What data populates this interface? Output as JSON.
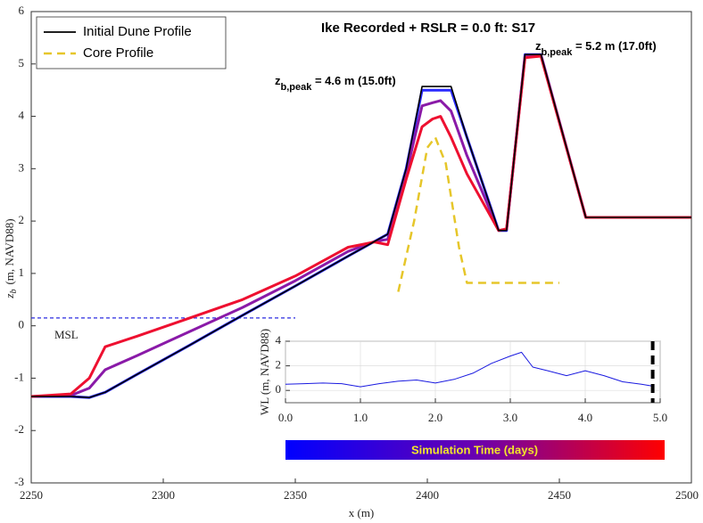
{
  "chart_data": [
    {
      "type": "line",
      "title": "Ike Recorded + RSLR = 0.0 ft: S17",
      "xlabel": "x (m)",
      "ylabel": {
        "base": "z",
        "sub": "b",
        "rest": "(m, NAVD88)"
      },
      "xlim": [
        2250,
        2500
      ],
      "xticks": [
        2250,
        2300,
        2350,
        2400,
        2450,
        2500
      ],
      "ylim": [
        -3,
        6
      ],
      "yticks": [
        -3,
        -2,
        -1,
        0,
        1,
        2,
        3,
        4,
        5,
        6
      ],
      "grid": false,
      "legend": "upper left",
      "x": [
        2250,
        2265,
        2272,
        2278,
        2290,
        2310,
        2330,
        2350,
        2370,
        2380,
        2385,
        2392,
        2398,
        2402,
        2405,
        2409,
        2415,
        2427,
        2430,
        2437,
        2443,
        2460,
        2500
      ],
      "series": [
        {
          "color": "#2a2aff",
          "width": 3,
          "values": [
            -1.35,
            -1.35,
            -1.37,
            -1.27,
            -0.93,
            -0.37,
            0.2,
            0.76,
            1.33,
            1.61,
            1.75,
            3.0,
            4.5,
            4.5,
            4.5,
            4.5,
            3.6,
            1.82,
            1.82,
            5.18,
            5.18,
            2.07,
            2.07
          ]
        },
        {
          "color": "#8a1aa8",
          "width": 3,
          "values": [
            -1.35,
            -1.33,
            -1.19,
            -0.84,
            -0.57,
            -0.11,
            0.35,
            0.86,
            1.42,
            1.61,
            1.65,
            2.9,
            4.2,
            4.26,
            4.3,
            4.1,
            3.25,
            1.82,
            1.84,
            5.15,
            5.17,
            2.07,
            2.07
          ]
        },
        {
          "color": "#ee1030",
          "width": 3,
          "values": [
            -1.35,
            -1.3,
            -1.0,
            -0.4,
            -0.2,
            0.15,
            0.5,
            0.95,
            1.5,
            1.6,
            1.55,
            2.8,
            3.8,
            3.95,
            4.0,
            3.6,
            2.9,
            1.82,
            1.85,
            5.12,
            5.15,
            2.07,
            2.07
          ]
        },
        {
          "name": "Initial Dune Profile",
          "color": "#000000",
          "width": 1.6,
          "values": [
            -1.35,
            -1.35,
            -1.37,
            -1.27,
            -0.93,
            -0.37,
            0.2,
            0.76,
            1.33,
            1.61,
            1.75,
            3.0,
            4.57,
            4.57,
            4.57,
            4.57,
            3.6,
            1.82,
            1.82,
            5.18,
            5.18,
            2.07,
            2.07
          ]
        },
        {
          "name": "Core Profile",
          "color": "#e6c62a",
          "width": 2.5,
          "dashed": true,
          "x": [
            2389,
            2395,
            2400,
            2403,
            2407,
            2412,
            2415,
            2450
          ],
          "values": [
            0.65,
            2.0,
            3.4,
            3.6,
            3.1,
            1.5,
            0.82,
            0.82
          ]
        }
      ],
      "msl": {
        "label": "MSL",
        "value": 0.15,
        "x": [
          2250,
          2350
        ],
        "color": "#2a2ae0"
      },
      "annotations": [
        {
          "base": "z",
          "sub": "b,peak",
          "rest": " = 4.6 m (15.0ft)"
        },
        {
          "base": "z",
          "sub": "b,peak",
          "rest": " = 5.2 m (17.0ft)"
        }
      ],
      "colorbar": {
        "label": "Simulation Time (days)",
        "colors": [
          "#0000ff",
          "#6a00b0",
          "#ff0000"
        ],
        "label_color": "#f2e62a"
      }
    },
    {
      "type": "line",
      "ylabel": "WL (m, NAVD88)",
      "xlim": [
        0,
        5
      ],
      "xticks": [
        {
          "value": 0,
          "label": "0.0"
        },
        {
          "value": 1,
          "label": "1.0"
        },
        {
          "value": 2,
          "label": "2.0"
        },
        {
          "value": 3,
          "label": "3.0"
        },
        {
          "value": 4,
          "label": "4.0"
        },
        {
          "value": 5,
          "label": "5.0"
        }
      ],
      "ylim": [
        -1,
        4
      ],
      "yticks": [
        0,
        2,
        4
      ],
      "grid": true,
      "x": [
        0,
        0.25,
        0.5,
        0.75,
        1.0,
        1.25,
        1.5,
        1.75,
        2.0,
        2.25,
        2.5,
        2.75,
        3.0,
        3.15,
        3.3,
        3.5,
        3.75,
        4.0,
        4.25,
        4.5,
        4.75,
        4.9
      ],
      "series": [
        {
          "color": "#1a1ae0",
          "width": 1,
          "values": [
            0.5,
            0.55,
            0.6,
            0.55,
            0.3,
            0.55,
            0.75,
            0.85,
            0.6,
            0.9,
            1.4,
            2.2,
            2.8,
            3.1,
            1.9,
            1.6,
            1.2,
            1.6,
            1.2,
            0.7,
            0.5,
            0.35
          ]
        }
      ],
      "marker_x": 4.9
    }
  ]
}
